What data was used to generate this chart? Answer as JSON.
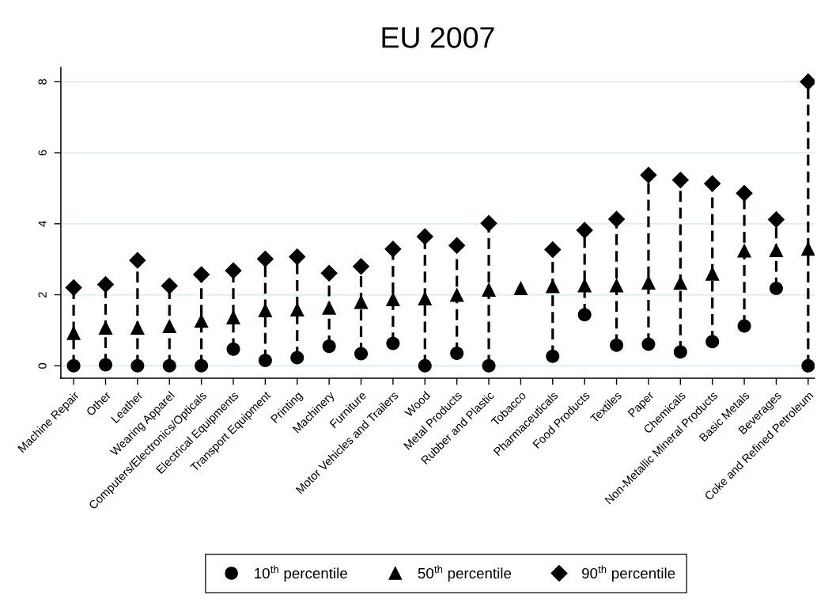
{
  "chart_data": {
    "type": "scatter",
    "title": "EU 2007",
    "categories": [
      "Machine Repair",
      "Other",
      "Leather",
      "Wearing Apparel",
      "Computers/Electronics/Opticals",
      "Electrical Equipments",
      "Transport Equipment",
      "Printing",
      "Machinery",
      "Furniture",
      "Motor Vehicles and Trailers",
      "Wood",
      "Metal Products",
      "Rubber and Plastic",
      "Tobacco",
      "Pharmaceuticals",
      "Food Products",
      "Textiles",
      "Paper",
      "Chemicals",
      "Non-Metallic Mineral Products",
      "Basic Metals",
      "Beverages",
      "Coke and Refined Petroleum"
    ],
    "series": [
      {
        "name": "10$^{th}$ percentile",
        "color": "#000000",
        "marker": "circle",
        "values": [
          0,
          0.03,
          0,
          0,
          0,
          0.47,
          0.15,
          0.23,
          0.55,
          0.34,
          0.63,
          0,
          0.35,
          0,
          null,
          0.27,
          1.44,
          0.58,
          0.61,
          0.39,
          0.68,
          1.12,
          2.18,
          0
        ]
      },
      {
        "name": "50$^{th}$ percentile",
        "color": "#000000",
        "marker": "triangle",
        "values": [
          0.93,
          1.08,
          1.08,
          1.12,
          1.27,
          1.37,
          1.57,
          1.59,
          1.64,
          1.8,
          1.88,
          1.9,
          2.0,
          2.15,
          2.19,
          2.25,
          2.27,
          2.27,
          2.35,
          2.34,
          2.6,
          3.25,
          3.26,
          3.3
        ]
      },
      {
        "name": "90$^{th}$ percentile",
        "color": "#000000",
        "marker": "diamond",
        "values": [
          2.2,
          2.29,
          2.97,
          2.25,
          2.57,
          2.68,
          3.01,
          3.07,
          2.61,
          2.8,
          3.29,
          3.64,
          3.39,
          4.01,
          null,
          3.27,
          3.82,
          4.13,
          5.37,
          5.23,
          5.13,
          4.86,
          4.12,
          8.0
        ]
      }
    ],
    "line_style": "dashed",
    "ylim": [
      -0.35,
      8.4
    ],
    "yticks": [
      0,
      2,
      4,
      6,
      8
    ],
    "grid": "y",
    "legend": "bottom"
  }
}
